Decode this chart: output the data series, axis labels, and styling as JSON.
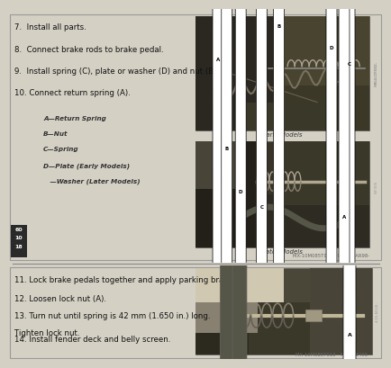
{
  "bg_color": "#d4d0c4",
  "border_color": "#999999",
  "top_section": {
    "steps": [
      "7.  Install all parts.",
      "8.  Connect brake rods to brake pedal.",
      "9.  Install spring (C), plate or washer (D) and nut (B).",
      "10. Connect return spring (A)."
    ],
    "legend_lines": [
      "A—Return Spring",
      "B—Nut",
      "C—Spring",
      "D—Plate (Early Models)",
      "   —Washer (Later Models)"
    ],
    "photo1_caption": "Early Models",
    "photo2_caption": "Later Models",
    "ref_text": "MX-10M085T013 - 04/07MAR98-",
    "side_label_text": "WF305"
  },
  "bottom_section": {
    "steps": [
      "11. Lock brake pedals together and apply parking brake.",
      "12. Loosen lock nut (A).",
      "13. Turn nut until spring is 42 mm (1.650 in.) long.\n    Tighten lock nut.",
      "14. Install fender deck and belly screen."
    ],
    "ref_text": "MX-10M085T013 - T6-14-8495-"
  },
  "text_color": "#111111",
  "legend_color": "#333333",
  "caption_color": "#333333",
  "ref_color": "#666666",
  "side_tab_bg": "#2a2a2a",
  "side_tab_fg": "#ffffff",
  "font_size_steps": 6.2,
  "font_size_legend": 5.2,
  "font_size_caption": 5.0,
  "font_size_ref": 3.8,
  "font_size_side": 5.5,
  "photo1_bg": "#3c3828",
  "photo2_bg": "#383428",
  "photo3_bg": "#4a4638",
  "photo_border": "#555555"
}
